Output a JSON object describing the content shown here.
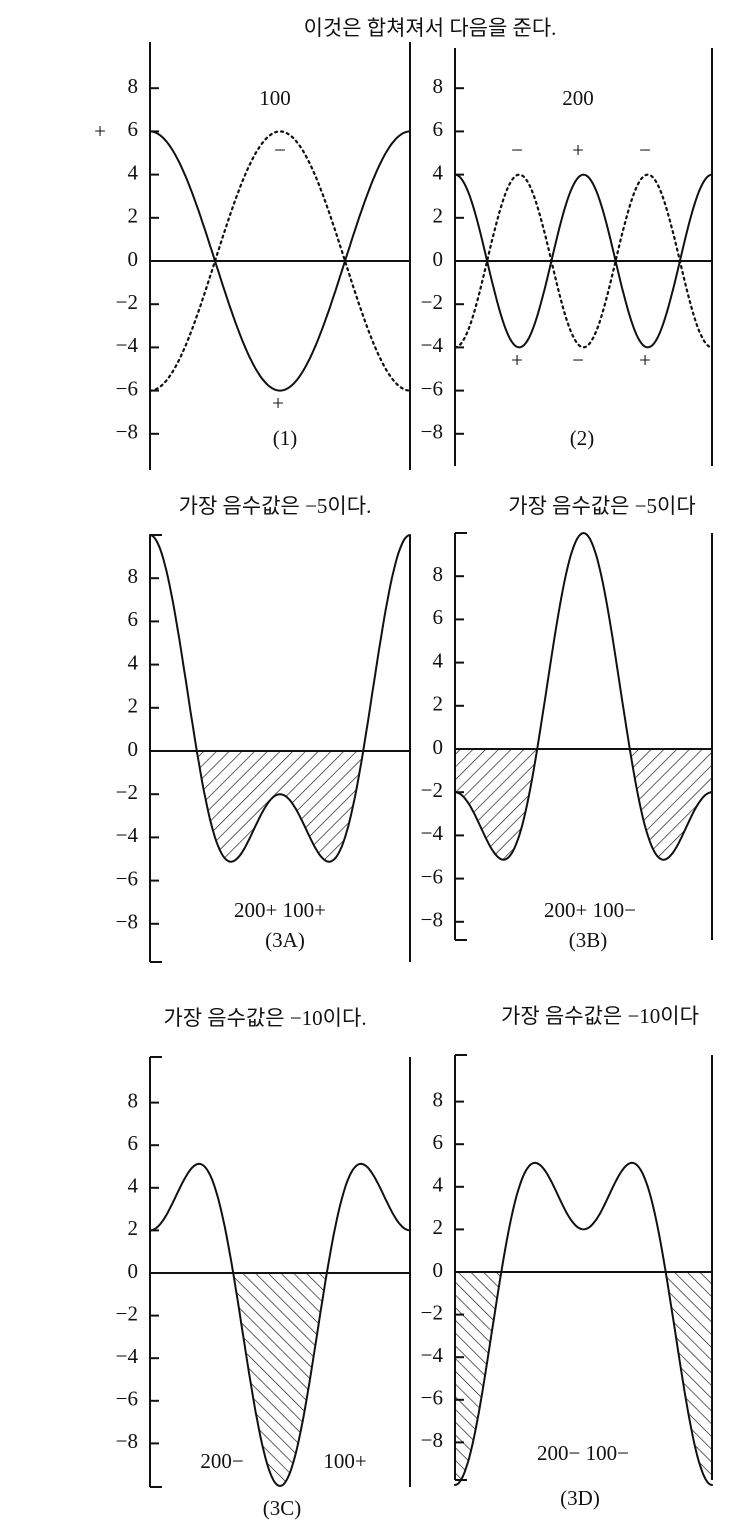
{
  "title": "이것은 합쳐져서 다음을 준다.",
  "captions": [
    "가장 음수값은 −5이다.",
    "가장 음수값은 −5이다",
    "가장 음수값은 −10이다.",
    "가장 음수값은 −10이다"
  ],
  "panels": [
    {
      "tick_labels": [
        "8",
        "6",
        "4",
        "2",
        "0",
        "−2",
        "−4",
        "−6",
        "−8"
      ],
      "sign": "+",
      "labels": [
        "100",
        "−",
        "+",
        "(1)"
      ]
    },
    {
      "tick_labels": [
        "8",
        "6",
        "4",
        "2",
        "0",
        "−2",
        "−4",
        "−6",
        "−8"
      ],
      "labels": [
        "200",
        "−",
        "+",
        "−",
        "+",
        "−",
        "+",
        "(2)"
      ]
    },
    {
      "tick_labels": [
        "8",
        "6",
        "4",
        "2",
        "0",
        "−2",
        "−4",
        "−6",
        "−8"
      ],
      "labels": [
        "200+ 100+",
        "(3A)"
      ]
    },
    {
      "tick_labels": [
        "8",
        "6",
        "4",
        "2",
        "0",
        "−2",
        "−4",
        "−6",
        "−8"
      ],
      "labels": [
        "200+ 100−",
        "(3B)"
      ]
    },
    {
      "tick_labels": [
        "8",
        "6",
        "4",
        "2",
        "0",
        "−2",
        "−4",
        "−6",
        "−8"
      ],
      "labels": [
        "200−",
        "100+",
        "(3C)"
      ]
    },
    {
      "tick_labels": [
        "8",
        "6",
        "4",
        "2",
        "0",
        "−2",
        "−4",
        "−6",
        "−8"
      ],
      "labels": [
        "200− 100−",
        "(3D)"
      ]
    }
  ]
}
